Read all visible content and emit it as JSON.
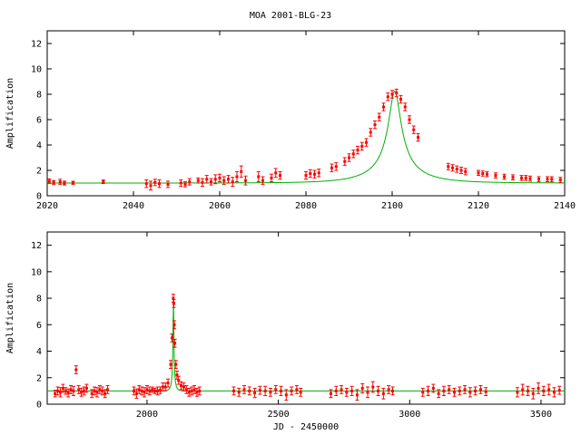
{
  "page": {
    "title": "MOA 2001-BLG-23"
  },
  "colors": {
    "data": "#ff0000",
    "model": "#00b000",
    "axes": "#000000"
  },
  "chart_data": [
    {
      "type": "scatter",
      "title": "MOA 2001-BLG-23",
      "xlabel": "",
      "ylabel": "Amplification",
      "xlim": [
        2020,
        2140
      ],
      "ylim": [
        0,
        13
      ],
      "xticks": [
        2020,
        2040,
        2060,
        2080,
        2100,
        2120,
        2140
      ],
      "yticks": [
        0,
        2,
        4,
        6,
        8,
        10,
        12
      ],
      "grid": false,
      "model": {
        "t0": 2100.6,
        "u0": 0.122,
        "tE": 11.5,
        "baseline": 1.0
      },
      "series": [
        {
          "points": [
            [
              2020.5,
              1.15,
              0.18
            ],
            [
              2021.5,
              1.05,
              0.15
            ],
            [
              2023,
              1.1,
              0.2
            ],
            [
              2024,
              1.0,
              0.15
            ],
            [
              2026,
              1.02,
              0.12
            ],
            [
              2033,
              1.1,
              0.14
            ],
            [
              2043,
              0.95,
              0.3
            ],
            [
              2044,
              0.8,
              0.35
            ],
            [
              2045,
              1.05,
              0.25
            ],
            [
              2046,
              0.95,
              0.3
            ],
            [
              2048,
              0.9,
              0.25
            ],
            [
              2051,
              1.0,
              0.25
            ],
            [
              2052,
              0.9,
              0.2
            ],
            [
              2053,
              1.1,
              0.25
            ],
            [
              2055,
              1.2,
              0.2
            ],
            [
              2056,
              1.05,
              0.3
            ],
            [
              2057,
              1.3,
              0.3
            ],
            [
              2058,
              1.1,
              0.25
            ],
            [
              2059,
              1.3,
              0.35
            ],
            [
              2060,
              1.4,
              0.3
            ],
            [
              2061,
              1.2,
              0.3
            ],
            [
              2062,
              1.3,
              0.3
            ],
            [
              2063,
              1.1,
              0.35
            ],
            [
              2064,
              1.5,
              0.4
            ],
            [
              2065,
              1.9,
              0.45
            ],
            [
              2066,
              1.2,
              0.35
            ],
            [
              2069,
              1.5,
              0.4
            ],
            [
              2070,
              1.2,
              0.3
            ],
            [
              2072,
              1.4,
              0.3
            ],
            [
              2073,
              1.8,
              0.35
            ],
            [
              2074,
              1.6,
              0.3
            ],
            [
              2080,
              1.6,
              0.3
            ],
            [
              2081,
              1.75,
              0.3
            ],
            [
              2082,
              1.7,
              0.3
            ],
            [
              2083,
              1.8,
              0.3
            ],
            [
              2086,
              2.2,
              0.3
            ],
            [
              2087,
              2.3,
              0.3
            ],
            [
              2089,
              2.7,
              0.3
            ],
            [
              2090,
              3.0,
              0.3
            ],
            [
              2091,
              3.3,
              0.3
            ],
            [
              2092,
              3.6,
              0.3
            ],
            [
              2093,
              3.9,
              0.3
            ],
            [
              2094,
              4.2,
              0.3
            ],
            [
              2095,
              5.0,
              0.3
            ],
            [
              2096,
              5.6,
              0.3
            ],
            [
              2097,
              6.2,
              0.3
            ],
            [
              2098,
              7.0,
              0.3
            ],
            [
              2099,
              7.8,
              0.3
            ],
            [
              2100,
              8.0,
              0.3
            ],
            [
              2101,
              8.1,
              0.3
            ],
            [
              2102,
              7.6,
              0.3
            ],
            [
              2103,
              7.0,
              0.3
            ],
            [
              2104,
              6.0,
              0.3
            ],
            [
              2105,
              5.2,
              0.3
            ],
            [
              2106,
              4.6,
              0.3
            ],
            [
              2113,
              2.3,
              0.25
            ],
            [
              2114,
              2.2,
              0.25
            ],
            [
              2115,
              2.1,
              0.25
            ],
            [
              2116,
              2.0,
              0.25
            ],
            [
              2117,
              1.9,
              0.25
            ],
            [
              2120,
              1.8,
              0.2
            ],
            [
              2121,
              1.75,
              0.2
            ],
            [
              2122,
              1.7,
              0.2
            ],
            [
              2124,
              1.6,
              0.2
            ],
            [
              2126,
              1.5,
              0.2
            ],
            [
              2128,
              1.45,
              0.2
            ],
            [
              2130,
              1.4,
              0.2
            ],
            [
              2131,
              1.4,
              0.2
            ],
            [
              2132,
              1.35,
              0.2
            ],
            [
              2134,
              1.3,
              0.2
            ],
            [
              2136,
              1.3,
              0.2
            ],
            [
              2137,
              1.3,
              0.2
            ],
            [
              2139,
              1.25,
              0.2
            ]
          ]
        }
      ]
    },
    {
      "type": "scatter",
      "title": "",
      "xlabel": "JD - 2450000",
      "ylabel": "Amplification",
      "xlim": [
        1620,
        3590
      ],
      "ylim": [
        0,
        13
      ],
      "xticks": [
        2000,
        2500,
        3000,
        3500
      ],
      "yticks": [
        0,
        2,
        4,
        6,
        8,
        10,
        12
      ],
      "grid": false,
      "model": {
        "t0": 2100.6,
        "u0": 0.122,
        "tE": 11.5,
        "baseline": 1.0
      },
      "series": [
        {
          "points": [
            [
              1650,
              0.8,
              0.25
            ],
            [
              1660,
              1.0,
              0.3
            ],
            [
              1670,
              0.9,
              0.35
            ],
            [
              1680,
              1.2,
              0.3
            ],
            [
              1690,
              1.0,
              0.25
            ],
            [
              1700,
              0.85,
              0.3
            ],
            [
              1710,
              1.1,
              0.3
            ],
            [
              1720,
              1.0,
              0.35
            ],
            [
              1730,
              2.6,
              0.3
            ],
            [
              1740,
              1.1,
              0.3
            ],
            [
              1750,
              0.9,
              0.3
            ],
            [
              1760,
              1.0,
              0.3
            ],
            [
              1770,
              1.2,
              0.3
            ],
            [
              1790,
              0.8,
              0.3
            ],
            [
              1800,
              1.0,
              0.3
            ],
            [
              1810,
              0.9,
              0.35
            ],
            [
              1820,
              1.1,
              0.3
            ],
            [
              1830,
              1.0,
              0.3
            ],
            [
              1840,
              0.8,
              0.3
            ],
            [
              1850,
              1.1,
              0.3
            ],
            [
              1950,
              1.0,
              0.3
            ],
            [
              1960,
              0.8,
              0.35
            ],
            [
              1970,
              1.1,
              0.3
            ],
            [
              1980,
              1.0,
              0.3
            ],
            [
              1990,
              0.9,
              0.35
            ],
            [
              2000,
              1.1,
              0.3
            ],
            [
              2010,
              1.0,
              0.3
            ],
            [
              2020,
              1.1,
              0.2
            ],
            [
              2030,
              1.0,
              0.2
            ],
            [
              2040,
              1.0,
              0.3
            ],
            [
              2050,
              1.05,
              0.25
            ],
            [
              2060,
              1.3,
              0.3
            ],
            [
              2070,
              1.3,
              0.3
            ],
            [
              2080,
              1.6,
              0.3
            ],
            [
              2090,
              3.0,
              0.3
            ],
            [
              2095,
              5.0,
              0.3
            ],
            [
              2100,
              8.0,
              0.3
            ],
            [
              2102,
              7.6,
              0.3
            ],
            [
              2104,
              6.0,
              0.3
            ],
            [
              2106,
              4.6,
              0.3
            ],
            [
              2110,
              3.0,
              0.3
            ],
            [
              2114,
              2.2,
              0.3
            ],
            [
              2120,
              1.8,
              0.3
            ],
            [
              2130,
              1.4,
              0.3
            ],
            [
              2140,
              1.3,
              0.3
            ],
            [
              2150,
              1.1,
              0.3
            ],
            [
              2160,
              0.9,
              0.3
            ],
            [
              2170,
              1.0,
              0.3
            ],
            [
              2180,
              1.1,
              0.3
            ],
            [
              2190,
              0.9,
              0.3
            ],
            [
              2200,
              1.0,
              0.3
            ],
            [
              2330,
              1.0,
              0.3
            ],
            [
              2350,
              0.9,
              0.3
            ],
            [
              2370,
              1.1,
              0.3
            ],
            [
              2390,
              1.0,
              0.3
            ],
            [
              2410,
              0.85,
              0.35
            ],
            [
              2430,
              1.05,
              0.3
            ],
            [
              2450,
              1.0,
              0.35
            ],
            [
              2470,
              0.9,
              0.3
            ],
            [
              2490,
              1.1,
              0.3
            ],
            [
              2510,
              1.0,
              0.35
            ],
            [
              2530,
              0.7,
              0.4
            ],
            [
              2550,
              1.0,
              0.3
            ],
            [
              2570,
              1.1,
              0.3
            ],
            [
              2585,
              0.9,
              0.3
            ],
            [
              2700,
              0.8,
              0.3
            ],
            [
              2720,
              1.0,
              0.35
            ],
            [
              2740,
              1.1,
              0.3
            ],
            [
              2760,
              0.9,
              0.3
            ],
            [
              2780,
              1.0,
              0.35
            ],
            [
              2800,
              0.7,
              0.4
            ],
            [
              2820,
              1.2,
              0.35
            ],
            [
              2840,
              0.9,
              0.4
            ],
            [
              2860,
              1.3,
              0.4
            ],
            [
              2880,
              1.0,
              0.35
            ],
            [
              2900,
              0.8,
              0.4
            ],
            [
              2920,
              1.1,
              0.3
            ],
            [
              2935,
              1.0,
              0.3
            ],
            [
              3050,
              0.9,
              0.3
            ],
            [
              3070,
              1.0,
              0.35
            ],
            [
              3090,
              1.2,
              0.3
            ],
            [
              3110,
              0.8,
              0.3
            ],
            [
              3130,
              1.0,
              0.35
            ],
            [
              3150,
              1.1,
              0.3
            ],
            [
              3170,
              0.9,
              0.3
            ],
            [
              3190,
              1.0,
              0.3
            ],
            [
              3210,
              1.1,
              0.3
            ],
            [
              3230,
              0.9,
              0.35
            ],
            [
              3250,
              1.0,
              0.3
            ],
            [
              3270,
              1.1,
              0.3
            ],
            [
              3290,
              0.95,
              0.3
            ],
            [
              3410,
              0.9,
              0.35
            ],
            [
              3430,
              1.1,
              0.4
            ],
            [
              3450,
              1.0,
              0.35
            ],
            [
              3470,
              0.8,
              0.4
            ],
            [
              3490,
              1.2,
              0.4
            ],
            [
              3510,
              1.0,
              0.35
            ],
            [
              3530,
              1.1,
              0.4
            ],
            [
              3550,
              0.9,
              0.35
            ],
            [
              3570,
              1.05,
              0.3
            ]
          ]
        }
      ]
    }
  ]
}
